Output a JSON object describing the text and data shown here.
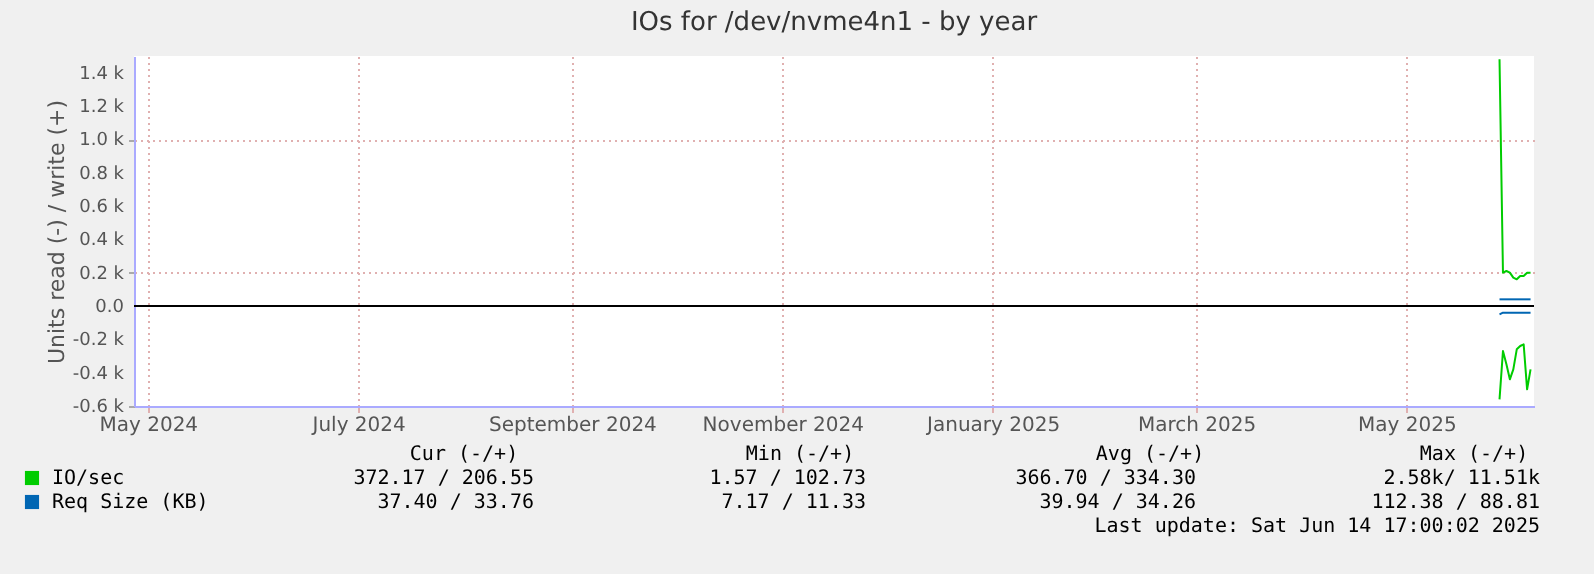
{
  "chart_data": {
    "type": "line",
    "title": "IOs for /dev/nvme4n1 - by year",
    "ylabel": "Units read (-) / write (+)",
    "x": [
      "2025-05-28",
      "2025-05-29",
      "2025-05-30",
      "2025-05-31",
      "2025-06-01",
      "2025-06-02",
      "2025-06-03",
      "2025-06-04",
      "2025-06-05",
      "2025-06-06"
    ],
    "series": [
      {
        "name": "IO/sec",
        "color": "#00cc00",
        "values": [
          1480,
          200,
          210,
          200,
          170,
          160,
          180,
          180,
          200,
          200
        ]
      },
      {
        "color": "#00cc00",
        "values": [
          -560,
          -270,
          -350,
          -440,
          -380,
          -260,
          -240,
          -230,
          -500,
          -380
        ]
      },
      {
        "name": "Req Size (KB)",
        "color": "#0066b3",
        "values": [
          40,
          40,
          40,
          40,
          40,
          40,
          40,
          40,
          40,
          40
        ]
      },
      {
        "color": "#0066b3",
        "values": [
          -50,
          -40,
          -40,
          -40,
          -40,
          -40,
          -40,
          -40,
          -40,
          -40
        ]
      }
    ],
    "xlim": [
      "2024-04-27",
      "2025-06-07"
    ],
    "xticks": [
      {
        "value": "2024-05-01",
        "label": "May 2024"
      },
      {
        "value": "2024-07-01",
        "label": "July 2024"
      },
      {
        "value": "2024-09-01",
        "label": "September 2024"
      },
      {
        "value": "2024-11-01",
        "label": "November 2024"
      },
      {
        "value": "2025-01-01",
        "label": "January 2025"
      },
      {
        "value": "2025-03-01",
        "label": "March 2025"
      },
      {
        "value": "2025-05-01",
        "label": "May 2025"
      }
    ],
    "ylim": [
      -600,
      1500
    ],
    "yticks": [
      {
        "value": -600,
        "label": "-0.6 k"
      },
      {
        "value": -400,
        "label": "-0.4 k"
      },
      {
        "value": -200,
        "label": "-0.2 k"
      },
      {
        "value": 0,
        "label": "0.0"
      },
      {
        "value": 200,
        "label": "0.2 k"
      },
      {
        "value": 400,
        "label": "0.4 k"
      },
      {
        "value": 600,
        "label": "0.6 k"
      },
      {
        "value": 800,
        "label": "0.8 k"
      },
      {
        "value": 1000,
        "label": "1.0 k"
      },
      {
        "value": 1200,
        "label": "1.2 k"
      },
      {
        "value": 1400,
        "label": "1.4 k"
      }
    ],
    "ref_lines": [
      {
        "axis": "y",
        "value": 0,
        "color": "#000000"
      }
    ],
    "grid": true,
    "legend": "bottom left",
    "annotations": [
      "Cur (-/+)",
      "Min (-/+)",
      "Avg (-/+)",
      "Max (-/+)",
      "372.17 /      206.55",
      "1.57 /      102.73",
      "366.70 /      334.30",
      "2.58k/      11.51k",
      "37.40 /       33.76",
      "7.17 /       11.33",
      "39.94 /       34.26",
      "112.38 /       88.81",
      "Last update: Sat Jun 14 17:00:02 2025"
    ]
  }
}
